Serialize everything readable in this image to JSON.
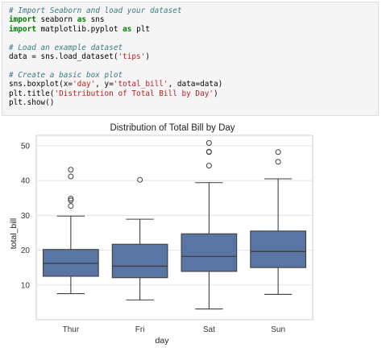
{
  "code_cell": {
    "lines": [
      [
        {
          "t": "# Import Seaborn and load your dataset",
          "c": "comment"
        }
      ],
      [
        {
          "t": "import",
          "c": "kw"
        },
        {
          "t": " seaborn ",
          "c": "plain"
        },
        {
          "t": "as",
          "c": "kw"
        },
        {
          "t": " sns",
          "c": "plain"
        }
      ],
      [
        {
          "t": "import",
          "c": "kw"
        },
        {
          "t": " matplotlib.pyplot ",
          "c": "plain"
        },
        {
          "t": "as",
          "c": "kw"
        },
        {
          "t": " plt",
          "c": "plain"
        }
      ],
      [],
      [
        {
          "t": "# Load an example dataset",
          "c": "comment"
        }
      ],
      [
        {
          "t": "data = sns.load_dataset(",
          "c": "plain"
        },
        {
          "t": "'tips'",
          "c": "str"
        },
        {
          "t": ")",
          "c": "plain"
        }
      ],
      [],
      [
        {
          "t": "# Create a basic box plot",
          "c": "comment"
        }
      ],
      [
        {
          "t": "sns.boxplot(x=",
          "c": "plain"
        },
        {
          "t": "'day'",
          "c": "str"
        },
        {
          "t": ", y=",
          "c": "plain"
        },
        {
          "t": "'total_bill'",
          "c": "str"
        },
        {
          "t": ", data=data)",
          "c": "plain"
        }
      ],
      [
        {
          "t": "plt.title(",
          "c": "plain"
        },
        {
          "t": "'Distribution of Total Bill by Day'",
          "c": "str"
        },
        {
          "t": ")",
          "c": "plain"
        }
      ],
      [
        {
          "t": "plt.show()",
          "c": "plain"
        }
      ]
    ]
  },
  "chart_data": {
    "type": "box",
    "title": "Distribution of Total Bill by Day",
    "xlabel": "day",
    "ylabel": "total_bill",
    "ylim": [
      0,
      53
    ],
    "yticks": [
      10,
      20,
      30,
      40,
      50
    ],
    "grid": true,
    "box_color": "#5875a4",
    "categories": [
      "Thur",
      "Fri",
      "Sat",
      "Sun"
    ],
    "boxes": [
      {
        "whisker_low": 7.5,
        "q1": 12.5,
        "median": 16.2,
        "q3": 20.2,
        "whisker_high": 29.8,
        "outliers": [
          32.7,
          34.3,
          34.8,
          41.2,
          43.1
        ]
      },
      {
        "whisker_low": 5.7,
        "q1": 12.1,
        "median": 15.4,
        "q3": 21.7,
        "whisker_high": 28.9,
        "outliers": [
          40.2
        ]
      },
      {
        "whisker_low": 3.1,
        "q1": 13.9,
        "median": 18.2,
        "q3": 24.7,
        "whisker_high": 39.4,
        "outliers": [
          44.3,
          48.2,
          48.3,
          50.8
        ]
      },
      {
        "whisker_low": 7.3,
        "q1": 15.0,
        "median": 19.6,
        "q3": 25.5,
        "whisker_high": 40.5,
        "outliers": [
          45.4,
          48.2
        ]
      }
    ]
  }
}
